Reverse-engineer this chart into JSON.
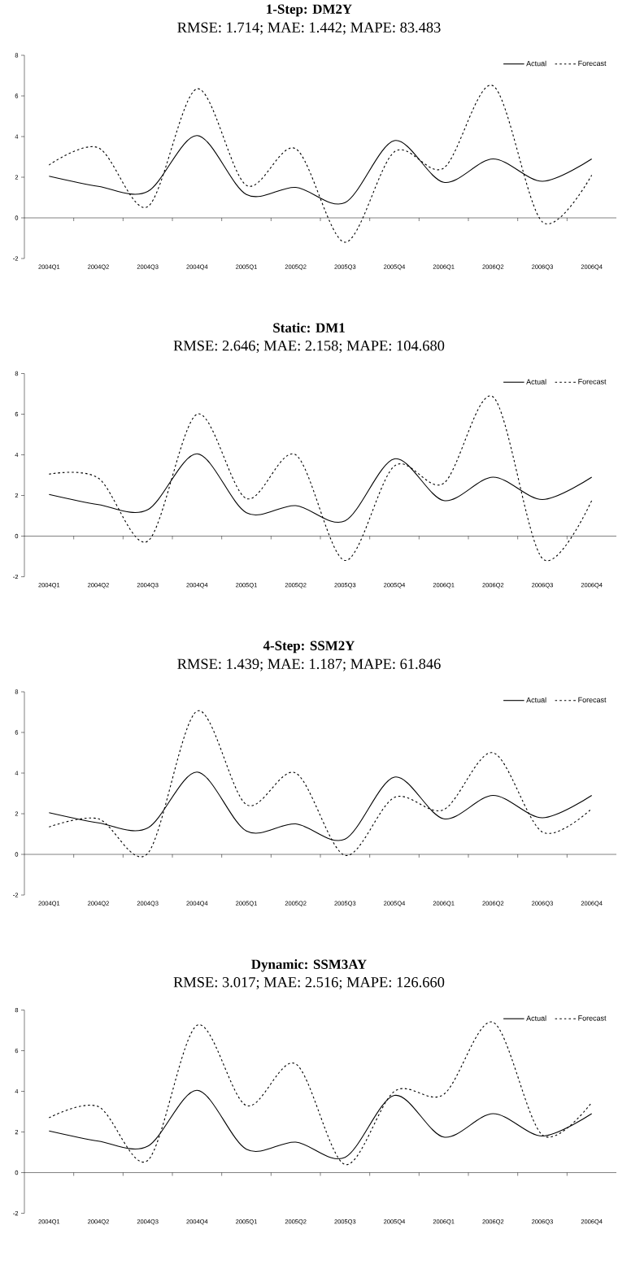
{
  "chart_data": [
    {
      "type": "line",
      "title": "1-Step: DM2Y",
      "subtitle": "RMSE: 1.714; MAE: 1.442; MAPE: 83.483",
      "categories": [
        "2004Q1",
        "2004Q2",
        "2004Q3",
        "2004Q4",
        "2005Q1",
        "2005Q2",
        "2005Q3",
        "2005Q4",
        "2006Q1",
        "2006Q2",
        "2006Q3",
        "2006Q4"
      ],
      "series": [
        {
          "name": "Actual",
          "color": "#000000",
          "line_style": "solid",
          "values": [
            2.05,
            1.55,
            1.3,
            4.05,
            1.15,
            1.5,
            0.75,
            3.8,
            1.75,
            2.9,
            1.8,
            2.9
          ]
        },
        {
          "name": "Forecast",
          "color": "#000000",
          "line_style": "dashed",
          "values": [
            2.6,
            3.45,
            0.55,
            6.35,
            1.6,
            3.4,
            -1.2,
            3.25,
            2.45,
            6.5,
            -0.2,
            2.1
          ]
        }
      ],
      "ylim": [
        -2,
        8
      ],
      "yticks": [
        -2,
        0,
        2,
        4,
        6,
        8
      ],
      "legend": "top right"
    },
    {
      "type": "line",
      "title": "Static: DM1",
      "subtitle": "RMSE: 2.646; MAE: 2.158; MAPE: 104.680",
      "categories": [
        "2004Q1",
        "2004Q2",
        "2004Q3",
        "2004Q4",
        "2005Q1",
        "2005Q2",
        "2005Q3",
        "2005Q4",
        "2006Q1",
        "2006Q2",
        "2006Q3",
        "2006Q4"
      ],
      "series": [
        {
          "name": "Actual",
          "color": "#000000",
          "line_style": "solid",
          "values": [
            2.05,
            1.55,
            1.3,
            4.05,
            1.15,
            1.5,
            0.75,
            3.8,
            1.75,
            2.9,
            1.8,
            2.9
          ]
        },
        {
          "name": "Forecast",
          "color": "#000000",
          "line_style": "dashed",
          "values": [
            3.05,
            2.85,
            -0.25,
            6.0,
            1.85,
            4.0,
            -1.2,
            3.45,
            2.6,
            6.85,
            -1.1,
            1.75
          ]
        }
      ],
      "ylim": [
        -2,
        8
      ],
      "yticks": [
        -2,
        0,
        2,
        4,
        6,
        8
      ],
      "legend": "top right"
    },
    {
      "type": "line",
      "title": "4-Step: SSM2Y",
      "subtitle": "RMSE: 1.439; MAE: 1.187; MAPE: 61.846",
      "categories": [
        "2004Q1",
        "2004Q2",
        "2004Q3",
        "2004Q4",
        "2005Q1",
        "2005Q2",
        "2005Q3",
        "2005Q4",
        "2006Q1",
        "2006Q2",
        "2006Q3",
        "2006Q4"
      ],
      "series": [
        {
          "name": "Actual",
          "color": "#000000",
          "line_style": "solid",
          "values": [
            2.05,
            1.55,
            1.3,
            4.05,
            1.15,
            1.5,
            0.75,
            3.8,
            1.75,
            2.9,
            1.8,
            2.9
          ]
        },
        {
          "name": "Forecast",
          "color": "#000000",
          "line_style": "dashed",
          "values": [
            1.35,
            1.75,
            0.05,
            7.05,
            2.45,
            4.0,
            -0.05,
            2.8,
            2.2,
            5.0,
            1.1,
            2.25
          ]
        }
      ],
      "ylim": [
        -2,
        8
      ],
      "yticks": [
        -2,
        0,
        2,
        4,
        6,
        8
      ],
      "legend": "top right"
    },
    {
      "type": "line",
      "title": "Dynamic: SSM3AY",
      "subtitle": "RMSE: 3.017; MAE: 2.516; MAPE: 126.660",
      "categories": [
        "2004Q1",
        "2004Q2",
        "2004Q3",
        "2004Q4",
        "2005Q1",
        "2005Q2",
        "2005Q3",
        "2005Q4",
        "2006Q1",
        "2006Q2",
        "2006Q3",
        "2006Q4"
      ],
      "series": [
        {
          "name": "Actual",
          "color": "#000000",
          "line_style": "solid",
          "values": [
            2.05,
            1.55,
            1.3,
            4.05,
            1.15,
            1.5,
            0.75,
            3.8,
            1.75,
            2.9,
            1.8,
            2.9
          ]
        },
        {
          "name": "Forecast",
          "color": "#000000",
          "line_style": "dashed",
          "values": [
            2.7,
            3.25,
            0.6,
            7.25,
            3.3,
            5.35,
            0.4,
            4.0,
            3.85,
            7.4,
            1.85,
            3.45
          ]
        }
      ],
      "ylim": [
        -2,
        8
      ],
      "yticks": [
        -2,
        0,
        2,
        4,
        6,
        8
      ],
      "legend": "top right"
    }
  ]
}
